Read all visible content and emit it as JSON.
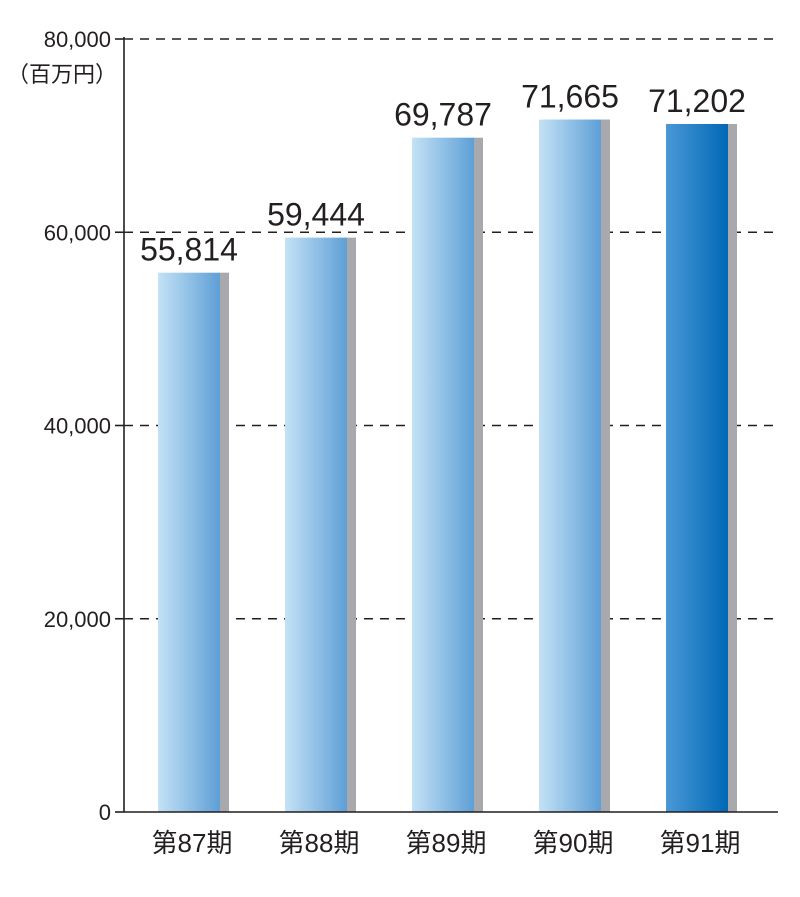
{
  "chart_data": {
    "type": "bar",
    "title": "",
    "xlabel": "",
    "ylabel": "",
    "unit": "（百万円）",
    "categories": [
      "第87期",
      "第88期",
      "第89期",
      "第90期",
      "第91期"
    ],
    "values": [
      55814,
      59444,
      69787,
      71665,
      71202
    ],
    "value_labels": [
      "55,814",
      "59,444",
      "69,787",
      "71,665",
      "71,202"
    ],
    "ylim": [
      0,
      80000
    ],
    "yticks": [
      0,
      20000,
      40000,
      60000,
      80000
    ],
    "ytick_labels": [
      "0",
      "20,000",
      "40,000",
      "60,000",
      "80,000"
    ],
    "grid": true,
    "grid_style": "dashed",
    "highlight_index": 4,
    "colors": {
      "bar_light_start": "#c4e2f6",
      "bar_light_end": "#5e9fd6",
      "bar_highlight_start": "#4a98d6",
      "bar_highlight_end": "#0068b6",
      "bar_shadow": "#a7a9ac",
      "axis": "#231f20",
      "grid": "#231f20"
    }
  }
}
